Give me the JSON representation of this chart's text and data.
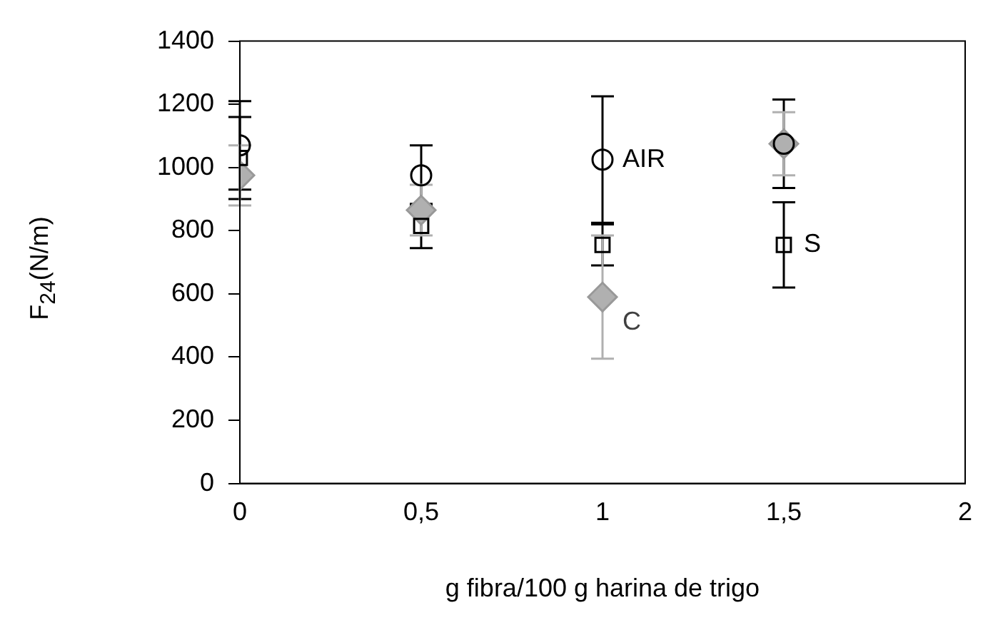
{
  "chart_data": {
    "type": "scatter",
    "xlabel": "g fibra/100 g harina de trigo",
    "ylabel": "F$_{24}$(N/m)",
    "x": [
      0,
      0.5,
      1,
      1.5
    ],
    "series": [
      {
        "name": "AIR",
        "color": "#000000",
        "marker": "circle",
        "values": [
          1070,
          975,
          1025,
          1075
        ],
        "errors": [
          140,
          95,
          200,
          140
        ]
      },
      {
        "name": "S",
        "color": "#000000",
        "marker": "square",
        "values": [
          1030,
          815,
          755,
          755
        ],
        "errors": [
          130,
          70,
          65,
          135
        ]
      },
      {
        "name": "C",
        "color": "#b0b0b0",
        "marker": "diamond",
        "values": [
          975,
          865,
          590,
          1075
        ],
        "errors": [
          95,
          80,
          195,
          100
        ]
      }
    ],
    "xlim": [
      0,
      2
    ],
    "xticks": [
      0,
      {
        "value": 0.5,
        "label": "0,5"
      },
      1,
      {
        "value": 1.5,
        "label": "1,5"
      },
      2
    ],
    "ylim": [
      0,
      1400
    ],
    "yticks": [
      0,
      200,
      400,
      600,
      800,
      1000,
      1200,
      1400
    ],
    "grid": false,
    "legend": false
  }
}
